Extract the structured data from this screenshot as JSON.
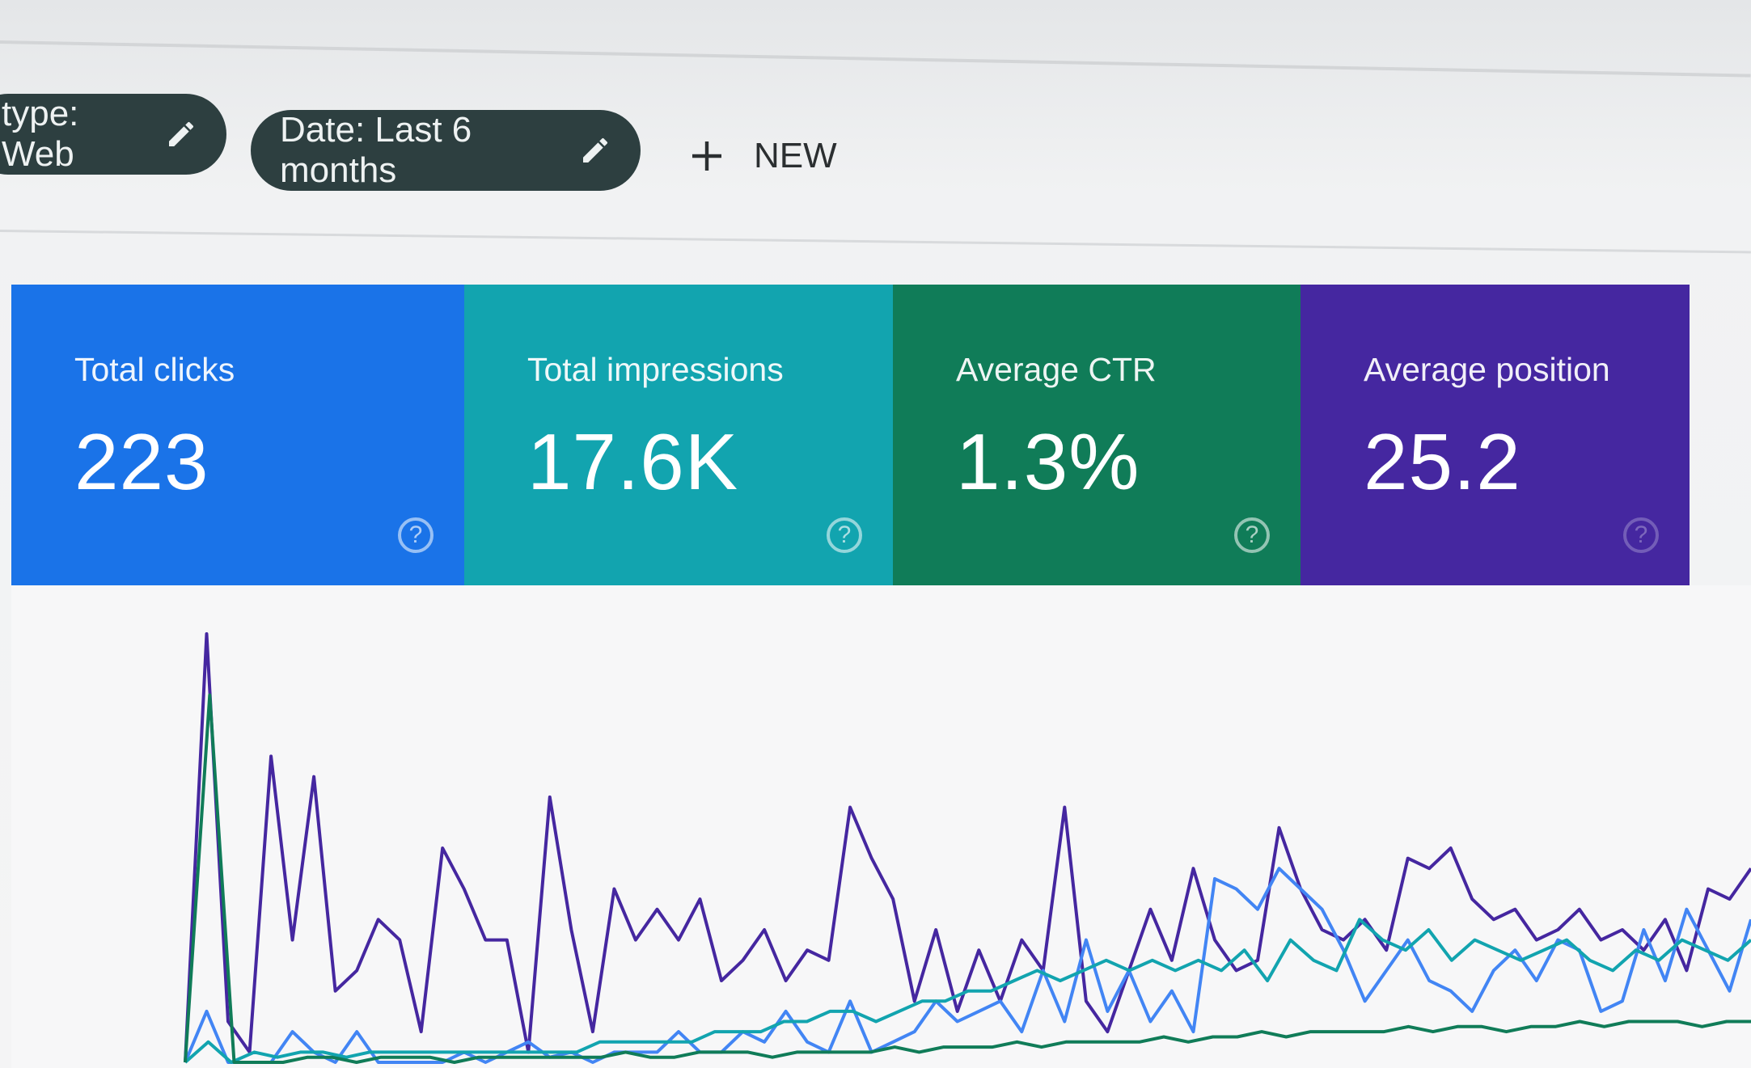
{
  "filters": {
    "type_chip": {
      "label": "type: Web",
      "icon": "pencil-icon"
    },
    "date_chip": {
      "label": "Date: Last 6 months",
      "icon": "pencil-icon"
    },
    "new_button": {
      "label": "NEW",
      "icon": "plus-icon"
    }
  },
  "metrics": [
    {
      "label": "Total clicks",
      "value": "223",
      "color": "#1a73e8",
      "help": "?"
    },
    {
      "label": "Total impressions",
      "value": "17.6K",
      "color": "#12a4af",
      "help": "?"
    },
    {
      "label": "Average CTR",
      "value": "1.3%",
      "color": "#107c58",
      "help": "?"
    },
    {
      "label": "Average position",
      "value": "25.2",
      "color": "#4527a0",
      "help": "?"
    }
  ],
  "chart_data": {
    "type": "line",
    "grid": false,
    "legend": "none",
    "series": [
      {
        "color": "#4527a0",
        "values": [
          0,
          4.2,
          0.4,
          0.1,
          3.0,
          1.2,
          2.8,
          0.7,
          0.9,
          1.4,
          1.2,
          0.3,
          2.1,
          1.7,
          1.2,
          1.2,
          0.1,
          2.6,
          1.3,
          0.3,
          1.7,
          1.2,
          1.5,
          1.2,
          1.6,
          0.8,
          1.0,
          1.3,
          0.8,
          1.1,
          1.0,
          2.5,
          2.0,
          1.6,
          0.6,
          1.3,
          0.5,
          1.1,
          0.6,
          1.2,
          0.9,
          2.5,
          0.6,
          0.3,
          0.9,
          1.5,
          1.0,
          1.9,
          1.2,
          0.9,
          1.0,
          2.3,
          1.7,
          1.3,
          1.2,
          1.4,
          1.1,
          2.0,
          1.9,
          2.1,
          1.6,
          1.4,
          1.5,
          1.2,
          1.3,
          1.5,
          1.2,
          1.3,
          1.1,
          1.4,
          0.9,
          1.7,
          1.6,
          1.9
        ]
      },
      {
        "color": "#4285f4",
        "values": [
          0,
          0.5,
          0,
          0,
          0,
          0.3,
          0.1,
          0,
          0.3,
          0,
          0,
          0,
          0,
          0.1,
          0,
          0.1,
          0.2,
          0.05,
          0.1,
          0,
          0.1,
          0.1,
          0.1,
          0.3,
          0.1,
          0.1,
          0.3,
          0.2,
          0.5,
          0.2,
          0.1,
          0.6,
          0.1,
          0.2,
          0.3,
          0.6,
          0.4,
          0.5,
          0.6,
          0.3,
          0.9,
          0.4,
          1.2,
          0.5,
          0.9,
          0.4,
          0.7,
          0.3,
          1.8,
          1.7,
          1.5,
          1.9,
          1.7,
          1.5,
          1.1,
          0.6,
          0.9,
          1.2,
          0.8,
          0.7,
          0.5,
          0.9,
          1.1,
          0.8,
          1.2,
          1.1,
          0.5,
          0.6,
          1.3,
          0.8,
          1.5,
          1.1,
          0.7,
          1.4
        ]
      },
      {
        "color": "#12a4af",
        "values": [
          0,
          0.2,
          0,
          0.1,
          0.05,
          0.1,
          0.1,
          0.05,
          0.1,
          0.1,
          0.1,
          0.1,
          0.1,
          0.1,
          0.1,
          0.1,
          0.1,
          0.1,
          0.2,
          0.2,
          0.2,
          0.2,
          0.2,
          0.3,
          0.3,
          0.3,
          0.4,
          0.4,
          0.5,
          0.5,
          0.4,
          0.5,
          0.6,
          0.6,
          0.7,
          0.7,
          0.8,
          0.9,
          0.8,
          0.9,
          1.0,
          0.9,
          1.0,
          0.9,
          1.0,
          0.9,
          1.1,
          0.8,
          1.2,
          1.0,
          0.9,
          1.4,
          1.2,
          1.1,
          1.3,
          1.0,
          1.2,
          1.1,
          1.0,
          1.1,
          1.2,
          1.0,
          0.9,
          1.1,
          1.0,
          1.2,
          1.1,
          1.0,
          1.2
        ]
      },
      {
        "color": "#107c58",
        "values": [
          0,
          3.6,
          0,
          0,
          0,
          0.05,
          0.05,
          0,
          0.05,
          0.05,
          0.05,
          0,
          0.05,
          0.05,
          0.05,
          0.05,
          0.05,
          0.05,
          0.1,
          0.05,
          0.05,
          0.1,
          0.1,
          0.1,
          0.05,
          0.1,
          0.1,
          0.1,
          0.1,
          0.15,
          0.1,
          0.15,
          0.15,
          0.15,
          0.2,
          0.15,
          0.2,
          0.2,
          0.2,
          0.2,
          0.25,
          0.2,
          0.25,
          0.25,
          0.3,
          0.25,
          0.3,
          0.3,
          0.3,
          0.3,
          0.35,
          0.3,
          0.35,
          0.35,
          0.3,
          0.35,
          0.35,
          0.4,
          0.35,
          0.4,
          0.4,
          0.4,
          0.35,
          0.4,
          0.4
        ]
      }
    ]
  }
}
